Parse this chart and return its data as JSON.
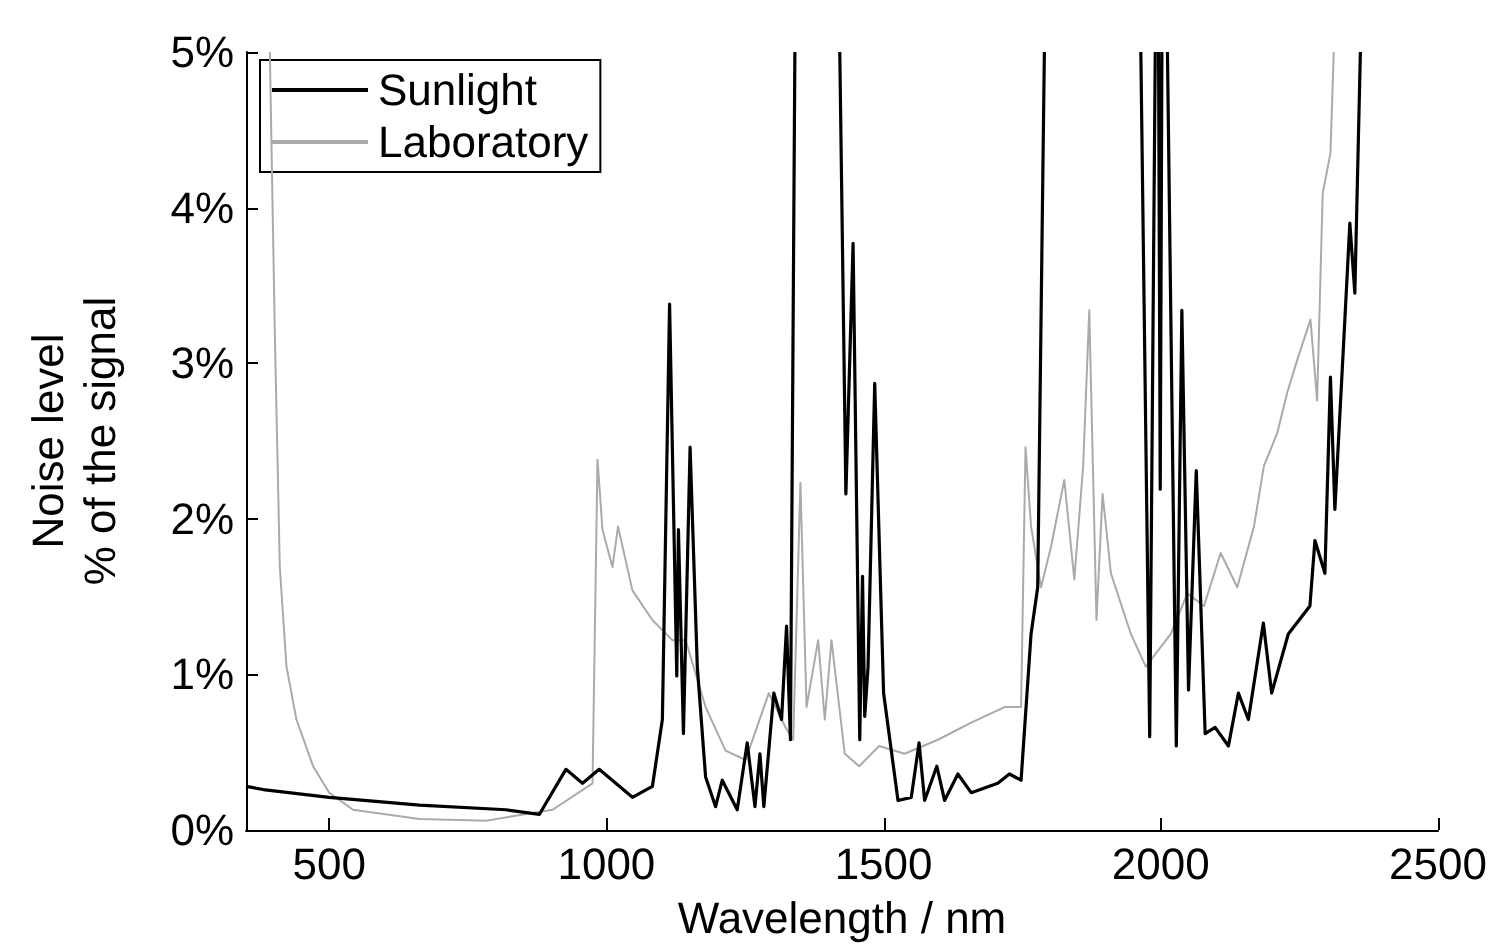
{
  "chart_data": {
    "type": "line",
    "xlabel": "Wavelength / nm",
    "ylabel": "Noise level\n% of the signal",
    "xlim": [
      350,
      2500
    ],
    "xticks": [
      500,
      1000,
      1500,
      2000,
      2500
    ],
    "ylim": [
      0,
      5
    ],
    "yticks": [
      {
        "value": 0,
        "label": "0%"
      },
      {
        "value": 1,
        "label": "1%"
      },
      {
        "value": 2,
        "label": "2%"
      },
      {
        "value": 3,
        "label": "3%"
      },
      {
        "value": 4,
        "label": "4%"
      },
      {
        "value": 5,
        "label": "5%"
      }
    ],
    "legend": "top left",
    "grid": false,
    "marker": "none",
    "line_style": "solid",
    "series": [
      {
        "name": "Sunlight",
        "color": "#000000",
        "x": [
          350,
          381,
          500,
          663,
          819,
          879,
          927,
          957,
          987,
          1047,
          1083,
          1101,
          1114,
          1127,
          1130,
          1139,
          1151,
          1164,
          1179,
          1197,
          1209,
          1236,
          1254,
          1268,
          1277,
          1284,
          1302,
          1316,
          1325,
          1332,
          1340,
          1380,
          1421,
          1432,
          1445,
          1457,
          1462,
          1466,
          1472,
          1484,
          1500,
          1526,
          1550,
          1564,
          1574,
          1596,
          1610,
          1634,
          1658,
          1706,
          1727,
          1748,
          1766,
          1778,
          1790,
          1880,
          1964,
          1980,
          1990,
          1993,
          1996,
          1999,
          2002,
          2007,
          2012,
          2028,
          2038,
          2050,
          2064,
          2080,
          2098,
          2122,
          2140,
          2158,
          2185,
          2200,
          2230,
          2269,
          2278,
          2296,
          2306,
          2314,
          2332,
          2341,
          2350,
          2360
        ],
        "values": [
          0.28,
          0.26,
          0.21,
          0.16,
          0.13,
          0.1,
          0.39,
          0.3,
          0.39,
          0.21,
          0.28,
          0.71,
          3.38,
          0.99,
          1.93,
          0.62,
          2.46,
          1.05,
          0.34,
          0.15,
          0.32,
          0.13,
          0.56,
          0.15,
          0.49,
          0.15,
          0.88,
          0.71,
          1.31,
          0.58,
          5,
          null,
          5,
          2.16,
          3.77,
          0.58,
          1.63,
          0.73,
          1.05,
          2.87,
          0.88,
          0.19,
          0.21,
          0.56,
          0.19,
          0.41,
          0.19,
          0.36,
          0.24,
          0.3,
          0.36,
          0.32,
          1.26,
          1.56,
          5,
          null,
          5,
          0.6,
          5,
          null,
          5,
          2.19,
          5,
          null,
          5,
          0.54,
          3.34,
          0.9,
          2.31,
          0.62,
          0.66,
          0.54,
          0.88,
          0.71,
          1.33,
          0.88,
          1.26,
          1.44,
          1.86,
          1.65,
          2.91,
          2.06,
          3.28,
          3.9,
          3.45,
          5
        ]
      },
      {
        "name": "Laboratory",
        "color": "#aaaaaa",
        "x": [
          393,
          402,
          411,
          423,
          441,
          471,
          500,
          543,
          663,
          783,
          903,
          975,
          984,
          993,
          1011,
          1021,
          1047,
          1083,
          1119,
          1143,
          1179,
          1215,
          1251,
          1293,
          1323,
          1337,
          1350,
          1361,
          1382,
          1394,
          1406,
          1430,
          1456,
          1492,
          1538,
          1598,
          1658,
          1718,
          1748,
          1756,
          1766,
          1784,
          1802,
          1826,
          1844,
          1860,
          1871,
          1884,
          1895,
          1910,
          1946,
          1973,
          2018,
          2048,
          2078,
          2108,
          2138,
          2168,
          2186,
          2210,
          2228,
          2246,
          2270,
          2282,
          2292,
          2306,
          2312
        ],
        "values": [
          5,
          3.19,
          1.69,
          1.05,
          0.71,
          0.41,
          0.24,
          0.13,
          0.07,
          0.06,
          0.13,
          0.3,
          2.38,
          1.93,
          1.69,
          1.95,
          1.54,
          1.35,
          1.22,
          1.22,
          0.79,
          0.51,
          0.45,
          0.88,
          0.66,
          0.58,
          2.23,
          0.79,
          1.22,
          0.71,
          1.22,
          0.49,
          0.41,
          0.54,
          0.49,
          0.58,
          0.69,
          0.79,
          0.79,
          2.46,
          1.95,
          1.56,
          1.82,
          2.25,
          1.61,
          2.34,
          3.34,
          1.35,
          2.16,
          1.65,
          1.26,
          1.05,
          1.26,
          1.52,
          1.44,
          1.78,
          1.56,
          1.95,
          2.34,
          2.55,
          2.81,
          3.02,
          3.28,
          2.76,
          4.09,
          4.35,
          5
        ]
      }
    ]
  }
}
